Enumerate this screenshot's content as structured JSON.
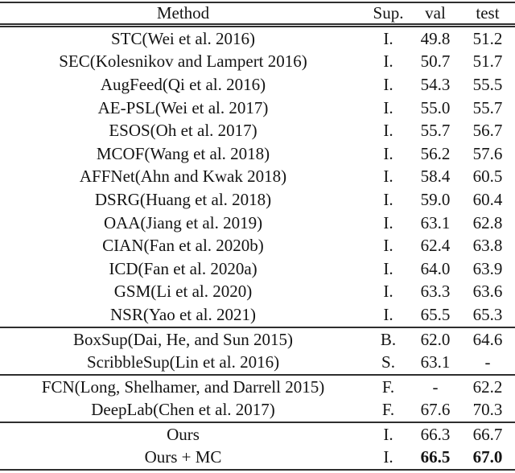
{
  "page": {
    "background": "#ffffff",
    "text_color": "#141414",
    "rule_color": "#2e2e2e"
  },
  "table": {
    "columns": [
      "Method",
      "Sup.",
      "val",
      "test"
    ],
    "sections": [
      {
        "rows": [
          {
            "method": "STC(Wei et al. 2016)",
            "sup": "I.",
            "val": "49.8",
            "test": "51.2",
            "bold": []
          },
          {
            "method": "SEC(Kolesnikov and Lampert 2016)",
            "sup": "I.",
            "val": "50.7",
            "test": "51.7",
            "bold": []
          },
          {
            "method": "AugFeed(Qi et al. 2016)",
            "sup": "I.",
            "val": "54.3",
            "test": "55.5",
            "bold": []
          },
          {
            "method": "AE-PSL(Wei et al. 2017)",
            "sup": "I.",
            "val": "55.0",
            "test": "55.7",
            "bold": []
          },
          {
            "method": "ESOS(Oh et al. 2017)",
            "sup": "I.",
            "val": "55.7",
            "test": "56.7",
            "bold": []
          },
          {
            "method": "MCOF(Wang et al. 2018)",
            "sup": "I.",
            "val": "56.2",
            "test": "57.6",
            "bold": []
          },
          {
            "method": "AFFNet(Ahn and Kwak 2018)",
            "sup": "I.",
            "val": "58.4",
            "test": "60.5",
            "bold": []
          },
          {
            "method": "DSRG(Huang et al. 2018)",
            "sup": "I.",
            "val": "59.0",
            "test": "60.4",
            "bold": []
          },
          {
            "method": "OAA(Jiang et al. 2019)",
            "sup": "I.",
            "val": "63.1",
            "test": "62.8",
            "bold": []
          },
          {
            "method": "CIAN(Fan et al. 2020b)",
            "sup": "I.",
            "val": "62.4",
            "test": "63.8",
            "bold": []
          },
          {
            "method": "ICD(Fan et al. 2020a)",
            "sup": "I.",
            "val": "64.0",
            "test": "63.9",
            "bold": []
          },
          {
            "method": "GSM(Li et al. 2020)",
            "sup": "I.",
            "val": "63.3",
            "test": "63.6",
            "bold": []
          },
          {
            "method": "NSR(Yao et al. 2021)",
            "sup": "I.",
            "val": "65.5",
            "test": "65.3",
            "bold": []
          }
        ]
      },
      {
        "rows": [
          {
            "method": "BoxSup(Dai, He, and Sun 2015)",
            "sup": "B.",
            "val": "62.0",
            "test": "64.6",
            "bold": []
          },
          {
            "method": "ScribbleSup(Lin et al. 2016)",
            "sup": "S.",
            "val": "63.1",
            "test": "-",
            "bold": []
          }
        ]
      },
      {
        "rows": [
          {
            "method": "FCN(Long, Shelhamer, and Darrell 2015)",
            "sup": "F.",
            "val": "-",
            "test": "62.2",
            "bold": []
          },
          {
            "method": "DeepLab(Chen et al. 2017)",
            "sup": "F.",
            "val": "67.6",
            "test": "70.3",
            "bold": []
          }
        ]
      },
      {
        "rows": [
          {
            "method": "Ours",
            "sup": "I.",
            "val": "66.3",
            "test": "66.7",
            "bold": []
          },
          {
            "method": "Ours + MC",
            "sup": "I.",
            "val": "66.5",
            "test": "67.0",
            "bold": [
              "val",
              "test"
            ]
          }
        ]
      }
    ]
  }
}
